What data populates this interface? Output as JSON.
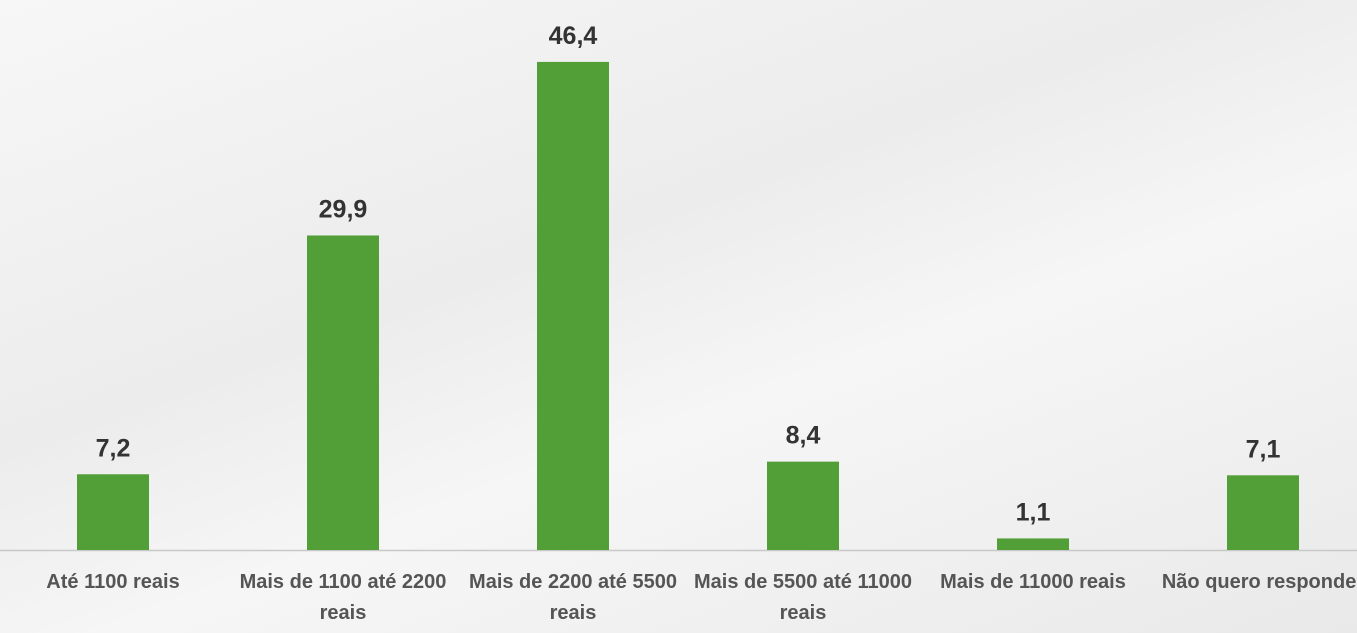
{
  "chart_data": {
    "type": "bar",
    "categories": [
      "Até 1100 reais",
      "Mais de 1100 até 2200 reais",
      "Mais de 2200 até 5500 reais",
      "Mais de 5500 até 11000 reais",
      "Mais de 11000 reais",
      "Não quero responder"
    ],
    "values": [
      7.2,
      29.9,
      46.4,
      8.4,
      1.1,
      7.1
    ],
    "value_labels": [
      "7,2",
      "29,9",
      "46,4",
      "8,4",
      "1,1",
      "7,1"
    ],
    "color": "#529e37",
    "ylim": [
      0,
      52
    ]
  }
}
